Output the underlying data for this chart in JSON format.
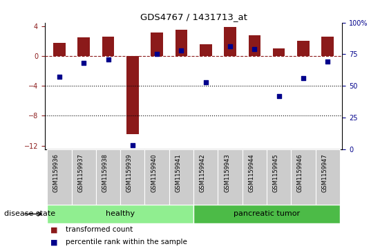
{
  "title": "GDS4767 / 1431713_at",
  "samples": [
    "GSM1159936",
    "GSM1159937",
    "GSM1159938",
    "GSM1159939",
    "GSM1159940",
    "GSM1159941",
    "GSM1159942",
    "GSM1159943",
    "GSM1159944",
    "GSM1159945",
    "GSM1159946",
    "GSM1159947"
  ],
  "transformed_count": [
    1.8,
    2.5,
    2.6,
    -10.5,
    3.2,
    3.5,
    1.6,
    3.9,
    2.8,
    1.0,
    2.1,
    2.6
  ],
  "percentile_rank_pct": [
    57,
    68,
    71,
    3,
    75,
    78,
    53,
    81,
    79,
    42,
    56,
    69
  ],
  "bar_color": "#8B1A1A",
  "dot_color": "#00008B",
  "ylim_left": [
    -12.5,
    4.5
  ],
  "yticks_left": [
    -12,
    -8,
    -4,
    0,
    4
  ],
  "ylim_right": [
    0,
    100
  ],
  "yticks_right": [
    0,
    25,
    50,
    75,
    100
  ],
  "right_labels": [
    "0",
    "25",
    "50",
    "75",
    "100%"
  ],
  "groups": [
    {
      "label": "healthy",
      "start": 0,
      "end": 5,
      "color": "#90EE90"
    },
    {
      "label": "pancreatic tumor",
      "start": 6,
      "end": 11,
      "color": "#4CBB47"
    }
  ],
  "disease_state_label": "disease state",
  "legend_items": [
    {
      "label": "transformed count",
      "color": "#8B1A1A"
    },
    {
      "label": "percentile rank within the sample",
      "color": "#00008B"
    }
  ],
  "hline_y": 0,
  "dotted_lines": [
    -4,
    -8
  ],
  "background_color": "#ffffff",
  "tick_box_color": "#cccccc",
  "bar_width": 0.5
}
